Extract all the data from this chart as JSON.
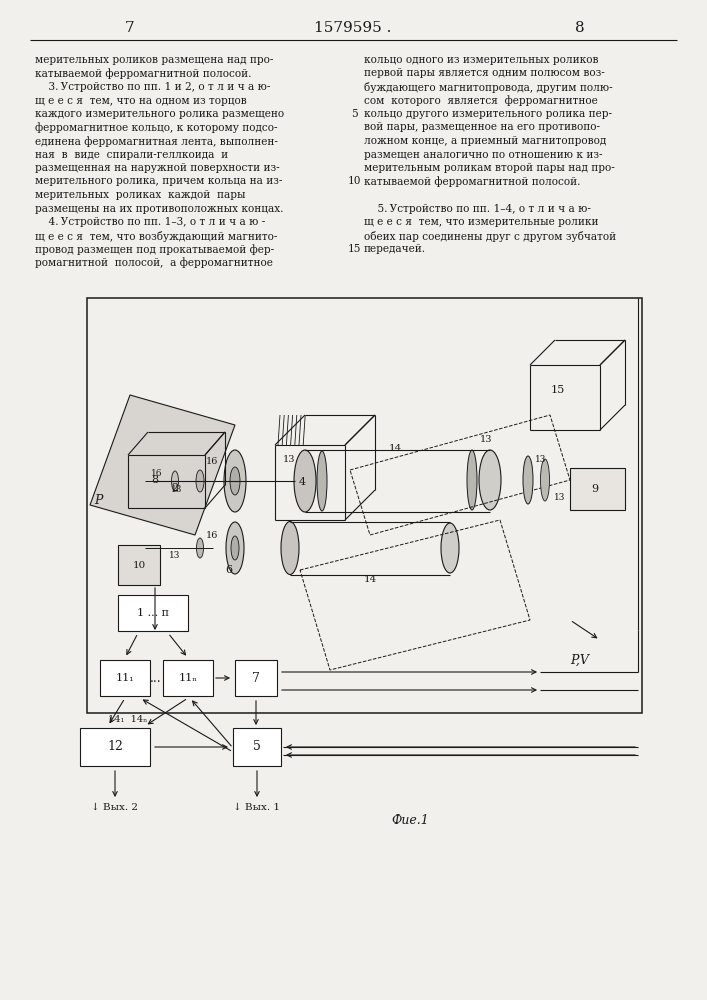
{
  "page_number_left": "7",
  "page_number_center": "1579595 .",
  "page_number_right": "8",
  "background_color": "#f2f0ec",
  "text_color": "#1a1a1a",
  "line_color": "#1a1a1a",
  "left_column_text": [
    "мерительных роликов размещена над про-",
    "катываемой ферромагнитной полосой.",
    "    3. Устройство по пп. 1 и 2, о т л и ч а ю-",
    "щ е е с я  тем, что на одном из торцов",
    "каждого измерительного ролика размещено",
    "ферромагнитное кольцо, к которому подсо-",
    "единена ферромагнитная лента, выполнен-",
    "ная  в  виде  спирали-геллкоида  и",
    "размещенная на наружной поверхности из-",
    "мерительного ролика, причем кольца на из-",
    "мерительных  роликах  каждой  пары",
    "размещены на их противоположных концах.",
    "    4. Устройство по пп. 1–3, о т л и ч а ю -",
    "щ е е с я  тем, что возбуждающий магнито-",
    "провод размещен под прокатываемой фер-",
    "ромагнитной  полосой,  а ферромагнитное"
  ],
  "right_column_text": [
    "кольцо одного из измерительных роликов",
    "первой пары является одним полюсом воз-",
    "буждающего магнитопровода, другим полю-",
    "сом  которого  является  ферромагнитное",
    "кольцо другого измерительного ролика пер-",
    "вой пары, размещенное на его противопо-",
    "ложном конце, а приемный магнитопровод",
    "размещен аналогично по отношению к из-",
    "мерительным роликам второй пары над про-",
    "катываемой ферромагнитной полосой.",
    "",
    "    5. Устройство по пп. 1–4, о т л и ч а ю-",
    "щ е е с я  тем, что измерительные ролики",
    "обеих пар соединены друг с другом зубчатой",
    "передачей."
  ]
}
